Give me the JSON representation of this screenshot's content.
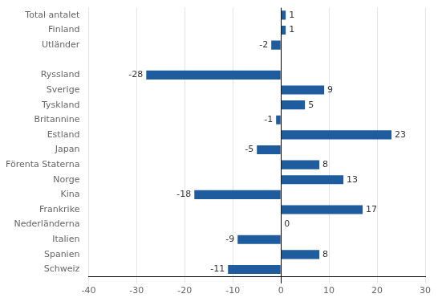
{
  "chart_data": {
    "type": "bar",
    "orientation": "horizontal",
    "categories": [
      "Total antalet",
      "Finland",
      "Utländer",
      null,
      "Ryssland",
      "Sverige",
      "Tyskland",
      "Britannine",
      "Estland",
      "Japan",
      "Förenta Staterna",
      "Norge",
      "Kina",
      "Frankrike",
      "Nederländerna",
      "Italien",
      "Spanien",
      "Schweiz"
    ],
    "values": [
      1,
      1,
      -2,
      null,
      -28,
      9,
      5,
      -1,
      23,
      -5,
      8,
      13,
      -18,
      17,
      0,
      -9,
      8,
      -11
    ],
    "color": "#1F5C9E",
    "xlim": [
      -40,
      30
    ],
    "xticks": [
      -40,
      -30,
      -20,
      -10,
      0,
      10,
      20,
      30
    ],
    "grid": true,
    "data_labels": true
  }
}
